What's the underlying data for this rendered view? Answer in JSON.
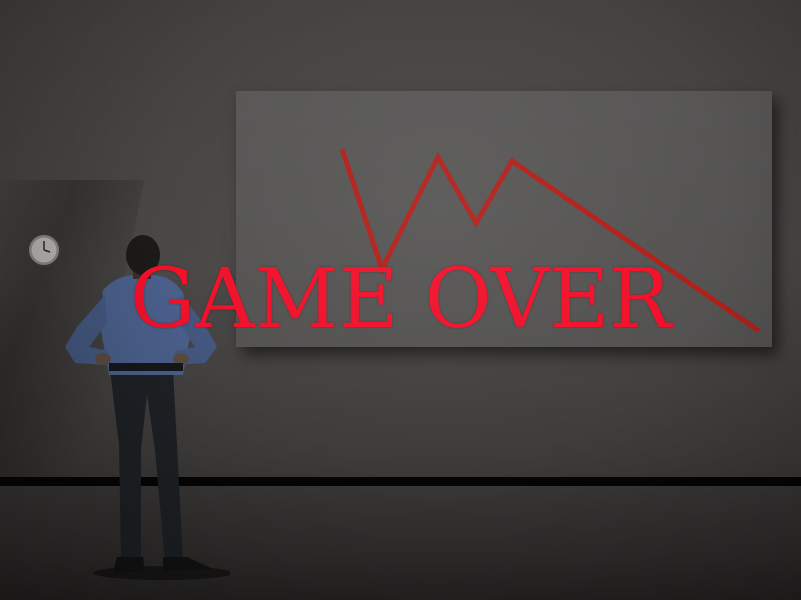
{
  "overlay": {
    "title": "GAME OVER",
    "color": "#f2102a"
  },
  "scene": {
    "board_line_color": "#b1201a",
    "wall_clock_icon": "wall-clock-icon",
    "person_figure": "businessman-silhouette"
  }
}
